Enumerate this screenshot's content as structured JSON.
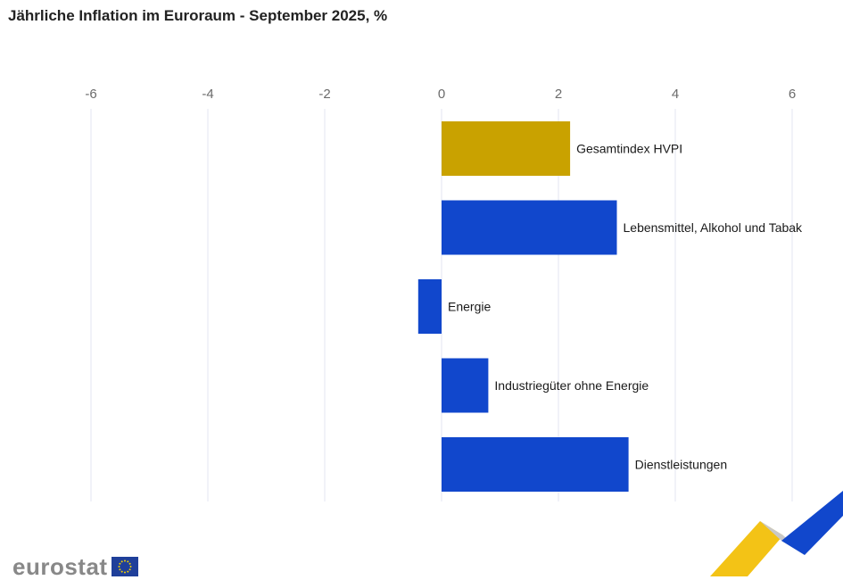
{
  "chart_data": {
    "type": "bar",
    "orientation": "horizontal",
    "title": "Jährliche Inflation im Euroraum - September 2025, %",
    "categories": [
      "Gesamtindex HVPI",
      "Lebensmittel, Alkohol und Tabak",
      "Energie",
      "Industriegüter ohne Energie",
      "Dienstleistungen"
    ],
    "values": [
      2.2,
      3.0,
      -0.4,
      0.8,
      3.2
    ],
    "colors": [
      "#C9A200",
      "#1147CC",
      "#1147CC",
      "#1147CC",
      "#1147CC"
    ],
    "xlim": [
      -6,
      6
    ],
    "ticks": [
      "-6",
      "-4",
      "-2",
      "0",
      "2",
      "4",
      "6"
    ],
    "tick_values": [
      -6,
      -4,
      -2,
      0,
      2,
      4,
      6
    ],
    "xlabel": "",
    "ylabel": "",
    "grid": true
  },
  "branding": {
    "logo_text": "eurostat"
  }
}
